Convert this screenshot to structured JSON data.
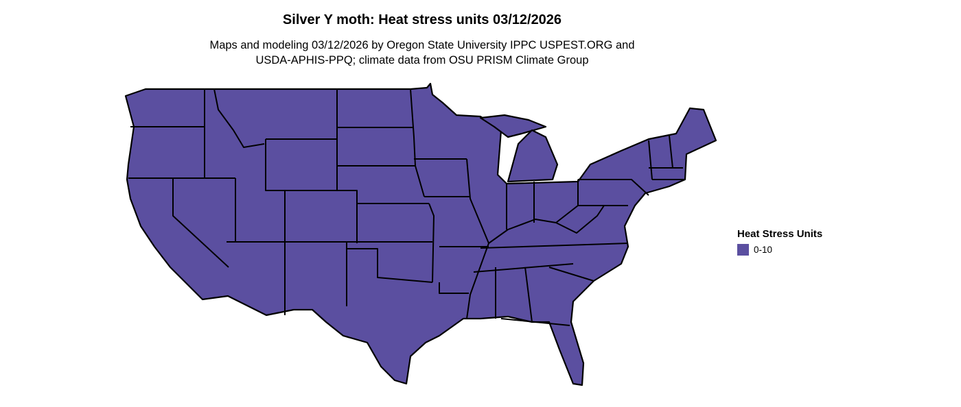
{
  "title": "Silver Y moth: Heat stress units 03/12/2026",
  "subtitle_line1": "Maps and modeling 03/12/2026 by Oregon State University IPPC USPEST.ORG and",
  "subtitle_line2": "USDA-APHIS-PPQ; climate data from OSU PRISM Climate Group",
  "legend": {
    "title": "Heat Stress Units",
    "items": [
      {
        "label": "0-10",
        "color": "#5b4fa0"
      }
    ]
  },
  "map": {
    "region": "contiguous United States",
    "fill_color": "#5b4fa0",
    "border_color": "#000000"
  }
}
